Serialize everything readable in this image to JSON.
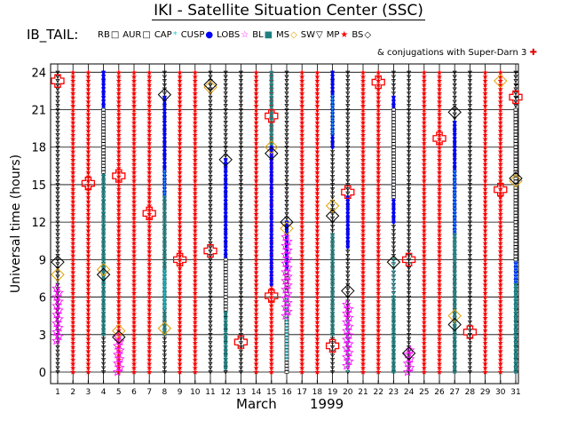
{
  "title": "IKI - Satellite Situation Center (SSC)",
  "region_label": "IB_TAIL:",
  "legend": [
    {
      "key": "RB",
      "label": "RB",
      "symbol": "open-square",
      "color": "#000000"
    },
    {
      "key": "AUR",
      "label": "AUR",
      "symbol": "open-square",
      "color": "#000000"
    },
    {
      "key": "CAP",
      "label": "CAP",
      "symbol": "asterisk",
      "color": "#20d0e0"
    },
    {
      "key": "CUSP",
      "label": "CUSP",
      "symbol": "dot",
      "color": "#0000ff"
    },
    {
      "key": "LOBS",
      "label": "LOBS",
      "symbol": "open-star",
      "color": "#ff00ff"
    },
    {
      "key": "BL",
      "label": "BL",
      "symbol": "filled-square",
      "color": "#208080"
    },
    {
      "key": "MS",
      "label": "MS",
      "symbol": "diamond",
      "color": "#e0a000"
    },
    {
      "key": "SW",
      "label": "SW",
      "symbol": "triangle-down",
      "color": "#000000"
    },
    {
      "key": "MP",
      "label": "MP",
      "symbol": "filled-star",
      "color": "#ff0000"
    },
    {
      "key": "BS",
      "label": "BS",
      "symbol": "diamond",
      "color": "#000000"
    }
  ],
  "conjugation_label": "& conjugations with Super-Darn 3",
  "colors": {
    "sw": "#000000",
    "mp": "#ff0000",
    "cusp": "#0000ff",
    "cap": "#20d0e0",
    "bl": "#208080",
    "lobs": "#ff00ff",
    "ms": "#e0a000",
    "bs": "#000000",
    "conj": "#ff0000",
    "grid": "#000000"
  },
  "chart_data": {
    "type": "scatter",
    "xlabel": "March",
    "year_label": "1999",
    "ylabel": "Universal time (hours)",
    "xlim": [
      1,
      31
    ],
    "ylim": [
      0,
      24
    ],
    "yticks": [
      0,
      3,
      6,
      9,
      12,
      15,
      18,
      21,
      24
    ],
    "xticks": [
      1,
      2,
      3,
      4,
      5,
      6,
      7,
      8,
      9,
      10,
      11,
      12,
      13,
      14,
      15,
      16,
      17,
      18,
      19,
      20,
      21,
      22,
      23,
      24,
      25,
      26,
      27,
      28,
      29,
      30,
      31
    ],
    "grid": true,
    "sw_days": [
      1,
      4,
      8,
      11,
      12,
      13,
      16,
      19,
      20,
      23,
      24,
      27,
      28,
      31
    ],
    "segments": [
      {
        "day": 4,
        "region": "cusp",
        "start": 19,
        "end": 24
      },
      {
        "day": 4,
        "region": "cap",
        "start": 16,
        "end": 21
      },
      {
        "day": 4,
        "region": "bl",
        "start": 3,
        "end": 16
      },
      {
        "day": 4,
        "region": "aur",
        "start": 16,
        "end": 21
      },
      {
        "day": 8,
        "region": "cusp",
        "start": 14,
        "end": 22
      },
      {
        "day": 8,
        "region": "cap",
        "start": 14,
        "end": 16
      },
      {
        "day": 8,
        "region": "bl",
        "start": 3,
        "end": 14
      },
      {
        "day": 8,
        "region": "cap",
        "start": 5,
        "end": 8
      },
      {
        "day": 12,
        "region": "cusp",
        "start": 6,
        "end": 17
      },
      {
        "day": 12,
        "region": "cap",
        "start": 5,
        "end": 7
      },
      {
        "day": 12,
        "region": "bl",
        "start": 0.3,
        "end": 6
      },
      {
        "day": 12,
        "region": "aur",
        "start": 5,
        "end": 9
      },
      {
        "day": 15,
        "region": "bl",
        "start": 18,
        "end": 24
      },
      {
        "day": 15,
        "region": "cusp",
        "start": 7,
        "end": 18
      },
      {
        "day": 16,
        "region": "cusp",
        "start": 8,
        "end": 12
      },
      {
        "day": 16,
        "region": "aur",
        "start": 0,
        "end": 8
      },
      {
        "day": 16,
        "region": "cap",
        "start": 1,
        "end": 6
      },
      {
        "day": 19,
        "region": "cusp",
        "start": 18,
        "end": 24
      },
      {
        "day": 19,
        "region": "cap",
        "start": 19,
        "end": 22
      },
      {
        "day": 19,
        "region": "bl",
        "start": 3,
        "end": 11
      },
      {
        "day": 20,
        "region": "cusp",
        "start": 10,
        "end": 14
      },
      {
        "day": 20,
        "region": "cap",
        "start": 0,
        "end": 4
      },
      {
        "day": 23,
        "region": "cusp",
        "start": 12,
        "end": 22
      },
      {
        "day": 23,
        "region": "aur",
        "start": 14,
        "end": 21
      },
      {
        "day": 23,
        "region": "cap",
        "start": 6,
        "end": 9
      },
      {
        "day": 23,
        "region": "bl",
        "start": 0,
        "end": 6
      },
      {
        "day": 27,
        "region": "cusp",
        "start": 11,
        "end": 20
      },
      {
        "day": 27,
        "region": "cap",
        "start": 9,
        "end": 16
      },
      {
        "day": 27,
        "region": "bl",
        "start": 0,
        "end": 11
      },
      {
        "day": 31,
        "region": "cusp",
        "start": 7,
        "end": 11
      },
      {
        "day": 31,
        "region": "cap",
        "start": 5,
        "end": 9
      },
      {
        "day": 31,
        "region": "bl",
        "start": 0,
        "end": 7
      },
      {
        "day": 31,
        "region": "aur",
        "start": 9,
        "end": 21
      }
    ],
    "lobes": [
      {
        "day": 1,
        "start": 2.5,
        "end": 7
      },
      {
        "day": 5,
        "start": 0,
        "end": 3
      },
      {
        "day": 16,
        "start": 4.5,
        "end": 11
      },
      {
        "day": 20,
        "start": 0.5,
        "end": 5.5
      },
      {
        "day": 24,
        "start": 0,
        "end": 2
      }
    ],
    "magnetosheath": [
      {
        "day": 1,
        "time": 7.8
      },
      {
        "day": 4,
        "time": 8.2
      },
      {
        "day": 5,
        "time": 3.3
      },
      {
        "day": 8,
        "time": 3.5
      },
      {
        "day": 11,
        "time": 22.8
      },
      {
        "day": 15,
        "time": 18.0
      },
      {
        "day": 16,
        "time": 11.5
      },
      {
        "day": 19,
        "time": 13.3
      },
      {
        "day": 23,
        "time": 8.8
      },
      {
        "day": 27,
        "time": 4.5
      },
      {
        "day": 30,
        "time": 23.3
      },
      {
        "day": 31,
        "time": 15.3
      }
    ],
    "bow_shock": [
      {
        "day": 1,
        "time": 8.8
      },
      {
        "day": 4,
        "time": 7.8
      },
      {
        "day": 5,
        "time": 2.8
      },
      {
        "day": 8,
        "time": 22.2
      },
      {
        "day": 11,
        "time": 23.0
      },
      {
        "day": 12,
        "time": 17.0
      },
      {
        "day": 15,
        "time": 17.5
      },
      {
        "day": 16,
        "time": 12.0
      },
      {
        "day": 19,
        "time": 12.5
      },
      {
        "day": 20,
        "time": 6.5
      },
      {
        "day": 23,
        "time": 8.8
      },
      {
        "day": 24,
        "time": 1.5
      },
      {
        "day": 27,
        "time": 3.8
      },
      {
        "day": 27,
        "time": 20.8
      },
      {
        "day": 31,
        "time": 15.5
      }
    ],
    "conjugations": [
      {
        "day": 1,
        "time": 23.3
      },
      {
        "day": 3,
        "time": 15.1
      },
      {
        "day": 5,
        "time": 15.7
      },
      {
        "day": 7,
        "time": 12.7
      },
      {
        "day": 9,
        "time": 9.0
      },
      {
        "day": 11,
        "time": 9.7
      },
      {
        "day": 13,
        "time": 2.4
      },
      {
        "day": 15,
        "time": 6.1
      },
      {
        "day": 15,
        "time": 20.5
      },
      {
        "day": 19,
        "time": 2.1
      },
      {
        "day": 20,
        "time": 14.4
      },
      {
        "day": 22,
        "time": 23.2
      },
      {
        "day": 24,
        "time": 9.0
      },
      {
        "day": 26,
        "time": 18.7
      },
      {
        "day": 28,
        "time": 3.2
      },
      {
        "day": 30,
        "time": 14.6
      },
      {
        "day": 31,
        "time": 22.0
      }
    ]
  }
}
